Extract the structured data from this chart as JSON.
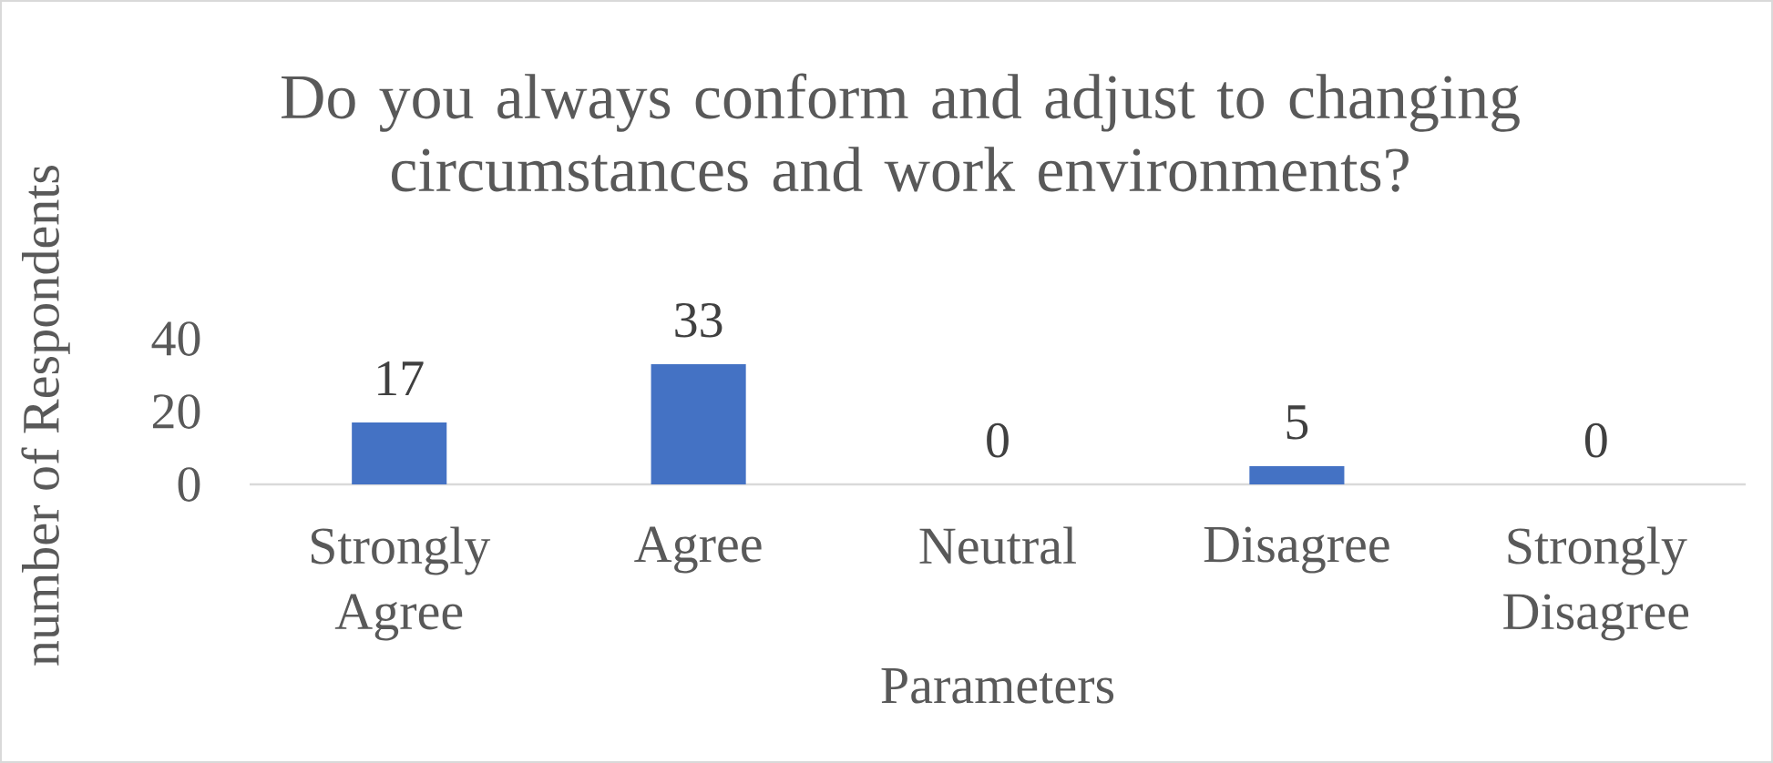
{
  "chart_data": {
    "type": "bar",
    "title": "Do you always conform and adjust to changing circumstances and work environments?",
    "xlabel": "Parameters",
    "ylabel": "number of Respondents",
    "categories": [
      "Strongly Agree",
      "Agree",
      "Neutral",
      "Disagree",
      "Strongly Disagree"
    ],
    "values": [
      17,
      33,
      0,
      5,
      0
    ],
    "color": "#4472c4",
    "ylim": [
      0,
      40
    ],
    "yticks": [
      0,
      20,
      40
    ],
    "data_labels": true
  }
}
